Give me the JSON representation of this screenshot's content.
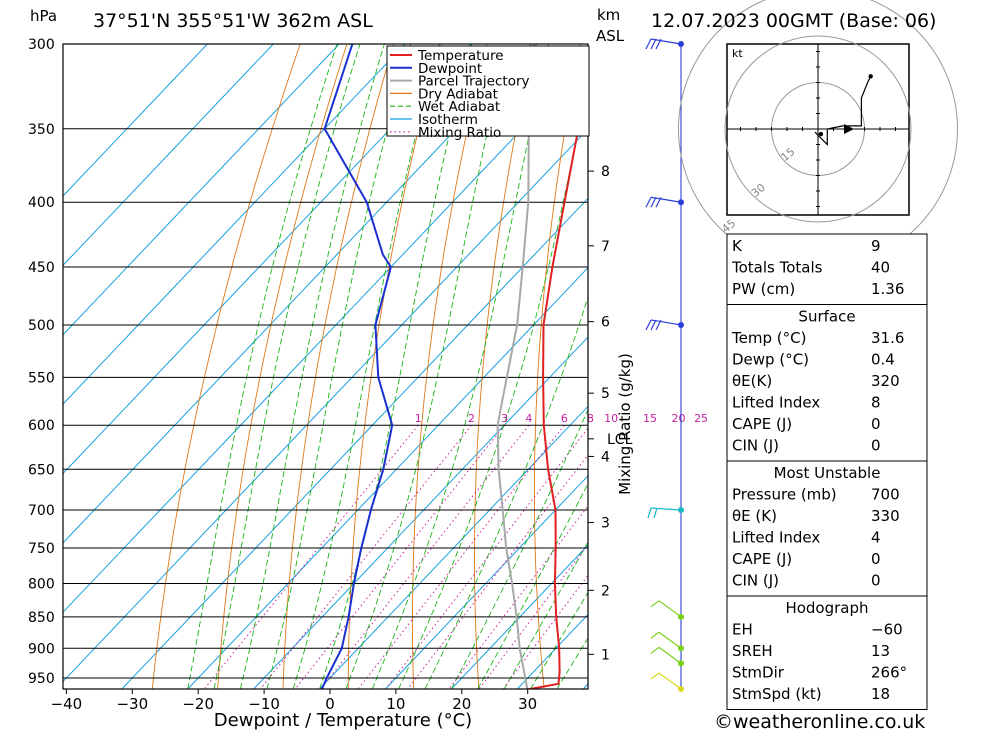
{
  "header": {
    "pressure_unit": "hPa",
    "location": "37°51'N  355°51'W  362m  ASL",
    "height_unit_1": "km",
    "height_unit_2": "ASL",
    "datetime": "12.07.2023  00GMT  (Base: 06)"
  },
  "colors": {
    "temperature": "#e02020",
    "dewpoint": "#1a2fd0",
    "parcel": "#a8a8a8",
    "dry_adiabat": "#e07818",
    "wet_adiabat": "#18b418",
    "isotherm": "#18a0e0",
    "mixing_ratio": "#c81fa0"
  },
  "chart_data": [
    {
      "type": "line",
      "subtype": "skew-T log-P diagram",
      "xlabel": "Dewpoint / Temperature (°C)",
      "ylabel": "hPa",
      "xlim": [
        -40,
        40
      ],
      "ylim": [
        300,
        970
      ],
      "x_ticks": [
        "−40",
        "−30",
        "−20",
        "−10",
        "0",
        "10",
        "20",
        "30"
      ],
      "x_tick_values": [
        -40,
        -30,
        -20,
        -10,
        0,
        10,
        20,
        30
      ],
      "pressure_levels": [
        300,
        350,
        400,
        450,
        500,
        550,
        600,
        650,
        700,
        750,
        800,
        850,
        900,
        950
      ],
      "pressure_labels": [
        "300",
        "350",
        "400",
        "450",
        "500",
        "550",
        "600",
        "650",
        "700",
        "750",
        "800",
        "850",
        "900",
        "950"
      ],
      "height_ticks": [
        {
          "label": "8",
          "p": 378
        },
        {
          "label": "7",
          "p": 433
        },
        {
          "label": "6",
          "p": 497
        },
        {
          "label": "5",
          "p": 566
        },
        {
          "label": "4",
          "p": 635
        },
        {
          "label": "3",
          "p": 716
        },
        {
          "label": "2",
          "p": 810
        },
        {
          "label": "1",
          "p": 910
        }
      ],
      "lcl_label": "LCL",
      "lcl_pressure": 615,
      "mixing_ratio_axis_label": "Mixing Ratio (g/kg)",
      "mixing_ratio_lines": [
        1,
        2,
        3,
        4,
        6,
        8,
        10,
        15,
        20,
        25
      ],
      "mixing_ratio_labels": [
        "1",
        "2",
        "3",
        "4",
        "6",
        "8",
        "10",
        "15",
        "20",
        "25"
      ],
      "legend": {
        "position": "top-right of plot",
        "entries": [
          {
            "label": "Temperature",
            "style": "temperature"
          },
          {
            "label": "Dewpoint",
            "style": "dewpoint"
          },
          {
            "label": "Parcel Trajectory",
            "style": "parcel"
          },
          {
            "label": "Dry Adiabat",
            "style": "dry_adiabat"
          },
          {
            "label": "Wet Adiabat",
            "style": "wet_adiabat"
          },
          {
            "label": "Isotherm",
            "style": "isotherm"
          },
          {
            "label": "Mixing Ratio",
            "style": "mixing_ratio"
          }
        ]
      },
      "series": [
        {
          "name": "Temperature",
          "points": [
            [
              970,
              31.6
            ],
            [
              960,
              35.5
            ],
            [
              940,
              34.0
            ],
            [
              900,
              30.5
            ],
            [
              850,
              25.5
            ],
            [
              800,
              20.5
            ],
            [
              750,
              15.5
            ],
            [
              700,
              10.0
            ],
            [
              650,
              3.0
            ],
            [
              600,
              -4.0
            ],
            [
              550,
              -11.0
            ],
            [
              500,
              -18.5
            ],
            [
              450,
              -25.5
            ],
            [
              400,
              -33.0
            ],
            [
              350,
              -41.5
            ],
            [
              300,
              -51.0
            ]
          ]
        },
        {
          "name": "Dewpoint",
          "points": [
            [
              970,
              0.4
            ],
            [
              950,
              -0.5
            ],
            [
              900,
              -2.5
            ],
            [
              850,
              -6.0
            ],
            [
              800,
              -10.0
            ],
            [
              750,
              -14.0
            ],
            [
              700,
              -18.0
            ],
            [
              650,
              -22.0
            ],
            [
              600,
              -27.0
            ],
            [
              550,
              -36.0
            ],
            [
              500,
              -44.0
            ],
            [
              450,
              -50.0
            ],
            [
              440,
              -53.0
            ],
            [
              400,
              -63.0
            ],
            [
              350,
              -80.0
            ],
            [
              300,
              -88.0
            ]
          ]
        },
        {
          "name": "Parcel Trajectory",
          "points": [
            [
              970,
              31.6
            ],
            [
              900,
              24.5
            ],
            [
              850,
              19.5
            ],
            [
              800,
              14.0
            ],
            [
              750,
              8.0
            ],
            [
              700,
              2.0
            ],
            [
              650,
              -4.5
            ],
            [
              615,
              -9.0
            ],
            [
              600,
              -11.0
            ],
            [
              550,
              -16.5
            ],
            [
              500,
              -22.5
            ],
            [
              450,
              -30.0
            ],
            [
              400,
              -38.5
            ],
            [
              350,
              -49.0
            ],
            [
              300,
              -61.0
            ]
          ]
        }
      ],
      "wind_barbs": [
        {
          "p": 300,
          "color": "blue"
        },
        {
          "p": 400,
          "color": "blue"
        },
        {
          "p": 500,
          "color": "blue"
        },
        {
          "p": 700,
          "color": "cyan"
        },
        {
          "p": 850,
          "color": "green"
        },
        {
          "p": 900,
          "color": "green"
        },
        {
          "p": 925,
          "color": "green"
        },
        {
          "p": 970,
          "color": "yellow"
        }
      ]
    },
    {
      "type": "scatter",
      "subtype": "hodograph",
      "unit_label": "kt",
      "ring_labels": [
        "15",
        "30",
        "45"
      ],
      "ring_values": [
        15,
        30,
        45
      ],
      "trace": [
        [
          -1,
          -1
        ],
        [
          3,
          -5
        ],
        [
          3,
          0
        ],
        [
          8,
          1
        ],
        [
          14,
          1
        ],
        [
          14,
          10
        ],
        [
          16,
          15
        ],
        [
          17,
          17
        ]
      ]
    }
  ],
  "indices": {
    "top": [
      {
        "label": "K",
        "value": "9"
      },
      {
        "label": "Totals Totals",
        "value": "40"
      },
      {
        "label": "PW (cm)",
        "value": "1.36"
      }
    ],
    "surface": {
      "title": "Surface",
      "rows": [
        {
          "label": "Temp (°C)",
          "value": "31.6"
        },
        {
          "label": "Dewp (°C)",
          "value": "0.4"
        },
        {
          "label": "θE(K)",
          "value": "320"
        },
        {
          "label": "Lifted Index",
          "value": "8"
        },
        {
          "label": "CAPE (J)",
          "value": "0"
        },
        {
          "label": "CIN (J)",
          "value": "0"
        }
      ]
    },
    "most_unstable": {
      "title": "Most Unstable",
      "rows": [
        {
          "label": "Pressure (mb)",
          "value": "700"
        },
        {
          "label": "θE (K)",
          "value": "330"
        },
        {
          "label": "Lifted Index",
          "value": "4"
        },
        {
          "label": "CAPE (J)",
          "value": "0"
        },
        {
          "label": "CIN (J)",
          "value": "0"
        }
      ]
    },
    "hodograph": {
      "title": "Hodograph",
      "rows": [
        {
          "label": "EH",
          "value": "−60"
        },
        {
          "label": "SREH",
          "value": "13"
        },
        {
          "label": "StmDir",
          "value": "266°"
        },
        {
          "label": "StmSpd (kt)",
          "value": "18"
        }
      ]
    }
  },
  "footer": {
    "copyright": "©weatheronline.co.uk"
  }
}
